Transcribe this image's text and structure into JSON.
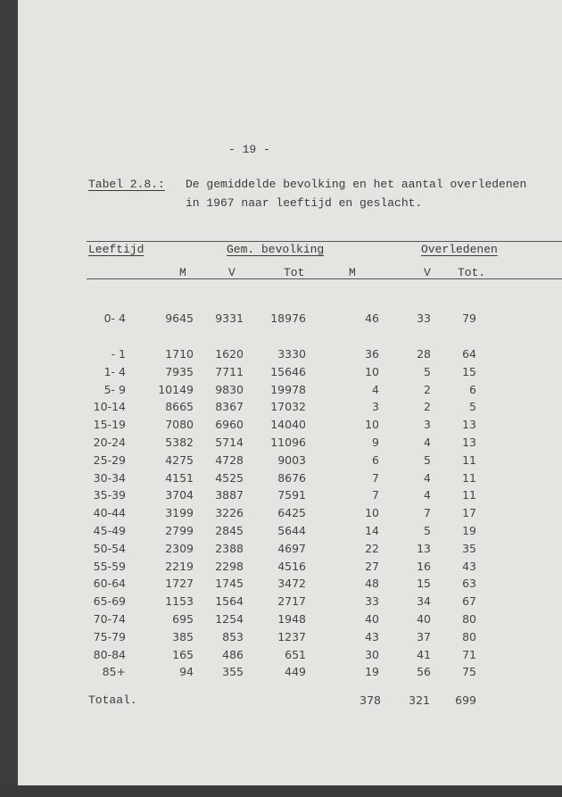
{
  "page_number": "- 19 -",
  "title": {
    "label": "Tabel 2.8.:",
    "line1": "De gemiddelde bevolking en het aantal overledenen",
    "line2": "in 1967 naar leeftijd en geslacht."
  },
  "headers": {
    "age": "Leeftijd",
    "population": "Gem. bevolking",
    "deaths": "Overledenen",
    "pop_m": "M",
    "pop_v": "V",
    "pop_tot": "Tot",
    "deaths_m": "M",
    "deaths_v": "V",
    "deaths_tot": "Tot."
  },
  "rows": [
    [
      "0- 4",
      "9645",
      "9331",
      "18976",
      "46",
      "33",
      "79"
    ],
    [
      "- 1",
      "1710",
      "1620",
      "3330",
      "36",
      "28",
      "64"
    ],
    [
      "1- 4",
      "7935",
      "7711",
      "15646",
      "10",
      "5",
      "15"
    ],
    [
      "5- 9",
      "10149",
      "9830",
      "19978",
      "4",
      "2",
      "6"
    ],
    [
      "10-14",
      "8665",
      "8367",
      "17032",
      "3",
      "2",
      "5"
    ],
    [
      "15-19",
      "7080",
      "6960",
      "14040",
      "10",
      "3",
      "13"
    ],
    [
      "20-24",
      "5382",
      "5714",
      "11096",
      "9",
      "4",
      "13"
    ],
    [
      "25-29",
      "4275",
      "4728",
      "9003",
      "6",
      "5",
      "11"
    ],
    [
      "30-34",
      "4151",
      "4525",
      "8676",
      "7",
      "4",
      "11"
    ],
    [
      "35-39",
      "3704",
      "3887",
      "7591",
      "7",
      "4",
      "11"
    ],
    [
      "40-44",
      "3199",
      "3226",
      "6425",
      "10",
      "7",
      "17"
    ],
    [
      "45-49",
      "2799",
      "2845",
      "5644",
      "14",
      "5",
      "19"
    ],
    [
      "50-54",
      "2309",
      "2388",
      "4697",
      "22",
      "13",
      "35"
    ],
    [
      "55-59",
      "2219",
      "2298",
      "4516",
      "27",
      "16",
      "43"
    ],
    [
      "60-64",
      "1727",
      "1745",
      "3472",
      "48",
      "15",
      "63"
    ],
    [
      "65-69",
      "1153",
      "1564",
      "2717",
      "33",
      "34",
      "67"
    ],
    [
      "70-74",
      "695",
      "1254",
      "1948",
      "40",
      "40",
      "80"
    ],
    [
      "75-79",
      "385",
      "853",
      "1237",
      "43",
      "37",
      "80"
    ],
    [
      "80-84",
      "165",
      "486",
      "651",
      "30",
      "41",
      "71"
    ],
    [
      "85+",
      "94",
      "355",
      "449",
      "19",
      "56",
      "75"
    ]
  ],
  "total": {
    "label": "Totaal.",
    "m": "378",
    "v": "321",
    "tot": "699"
  }
}
